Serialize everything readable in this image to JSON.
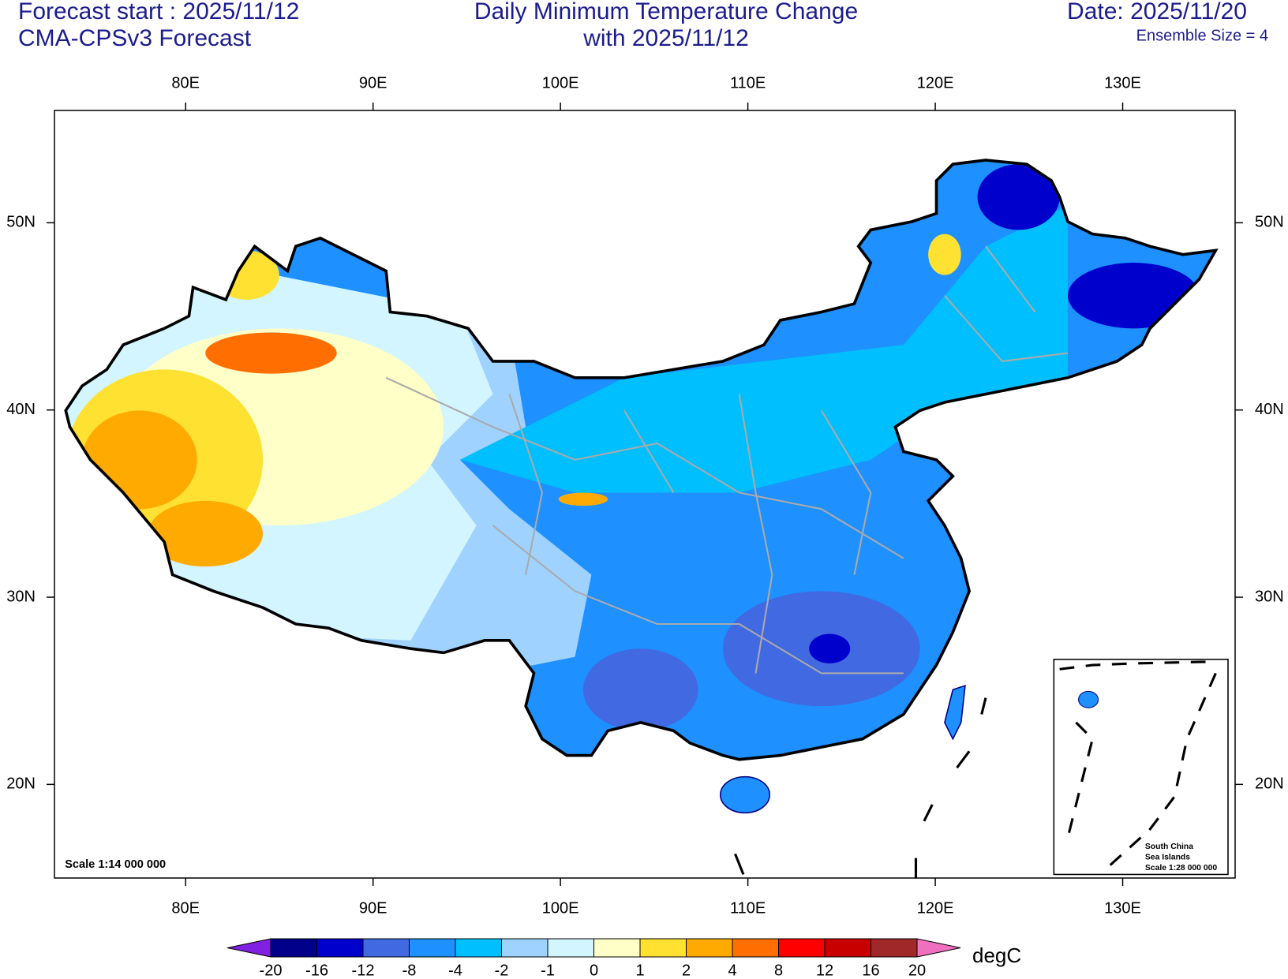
{
  "header": {
    "forecast_start": "Forecast start : 2025/11/12",
    "model": "CMA-CPSv3 Forecast",
    "title": [
      "Daily Minimum Temperature Change",
      "with 2025/11/12"
    ],
    "date": "Date: 2025/11/20",
    "ensemble": "Ensemble Size = 4"
  },
  "map": {
    "lonlim": [
      73,
      136
    ],
    "latlim": [
      15,
      56
    ],
    "lonticks": [
      {
        "value": 80,
        "label": "80E"
      },
      {
        "value": 90,
        "label": "90E"
      },
      {
        "value": 100,
        "label": "100E"
      },
      {
        "value": 110,
        "label": "110E"
      },
      {
        "value": 120,
        "label": "120E"
      },
      {
        "value": 130,
        "label": "130E"
      }
    ],
    "latticks": [
      {
        "value": 20,
        "label": "20N"
      },
      {
        "value": 30,
        "label": "30N"
      },
      {
        "value": 40,
        "label": "40N"
      },
      {
        "value": 50,
        "label": "50N"
      }
    ],
    "scale_note": "Scale 1:14 000 000",
    "inset": [
      "South China",
      "Sea Islands",
      "Scale 1:28 000 000"
    ]
  },
  "colorbar": {
    "levels": [
      -20,
      -16,
      -12,
      -8,
      -4,
      -2,
      -1,
      0,
      1,
      2,
      4,
      8,
      12,
      16,
      20
    ],
    "colors": [
      "#00008b",
      "#0000cd",
      "#4169e1",
      "#1e90ff",
      "#00bfff",
      "#a0d2ff",
      "#d2f5ff",
      "#ffffc8",
      "#ffe132",
      "#ffaa00",
      "#ff6e00",
      "#ff0000",
      "#c80000",
      "#a02828"
    ],
    "under_color": "#8020e0",
    "over_color": "#f070c0",
    "unit": "degC"
  }
}
